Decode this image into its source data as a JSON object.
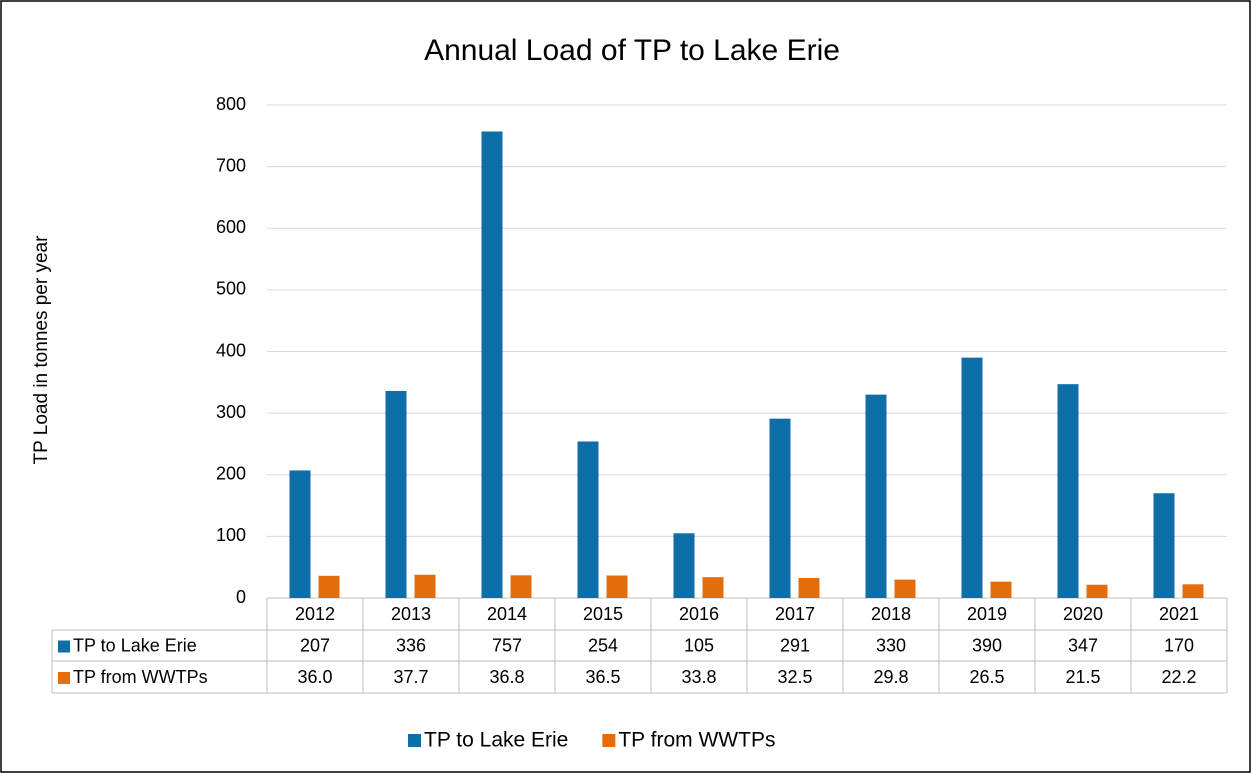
{
  "chart_data": {
    "type": "bar",
    "title": "Annual Load of TP to Lake Erie",
    "y_label": "TP Load in tonnes per year",
    "categories": [
      "2012",
      "2013",
      "2014",
      "2015",
      "2016",
      "2017",
      "2018",
      "2019",
      "2020",
      "2021"
    ],
    "series": [
      {
        "name": "TP to Lake Erie",
        "color": "#0e6fa8",
        "values": [
          207,
          336,
          757,
          254,
          105,
          291,
          330,
          390,
          347,
          170
        ]
      },
      {
        "name": "TP from WWTPs",
        "color": "#e46c0a",
        "values": [
          36.0,
          37.7,
          36.8,
          36.5,
          33.8,
          32.5,
          29.8,
          26.5,
          21.5,
          22.2
        ],
        "value_labels": [
          "36.0",
          "37.7",
          "36.8",
          "36.5",
          "33.8",
          "32.5",
          "29.8",
          "26.5",
          "21.5",
          "22.2"
        ]
      }
    ],
    "ylim": [
      0,
      800
    ],
    "yticks": [
      0,
      100,
      200,
      300,
      400,
      500,
      600,
      700,
      800
    ],
    "grid": true,
    "legend": "bottom"
  }
}
